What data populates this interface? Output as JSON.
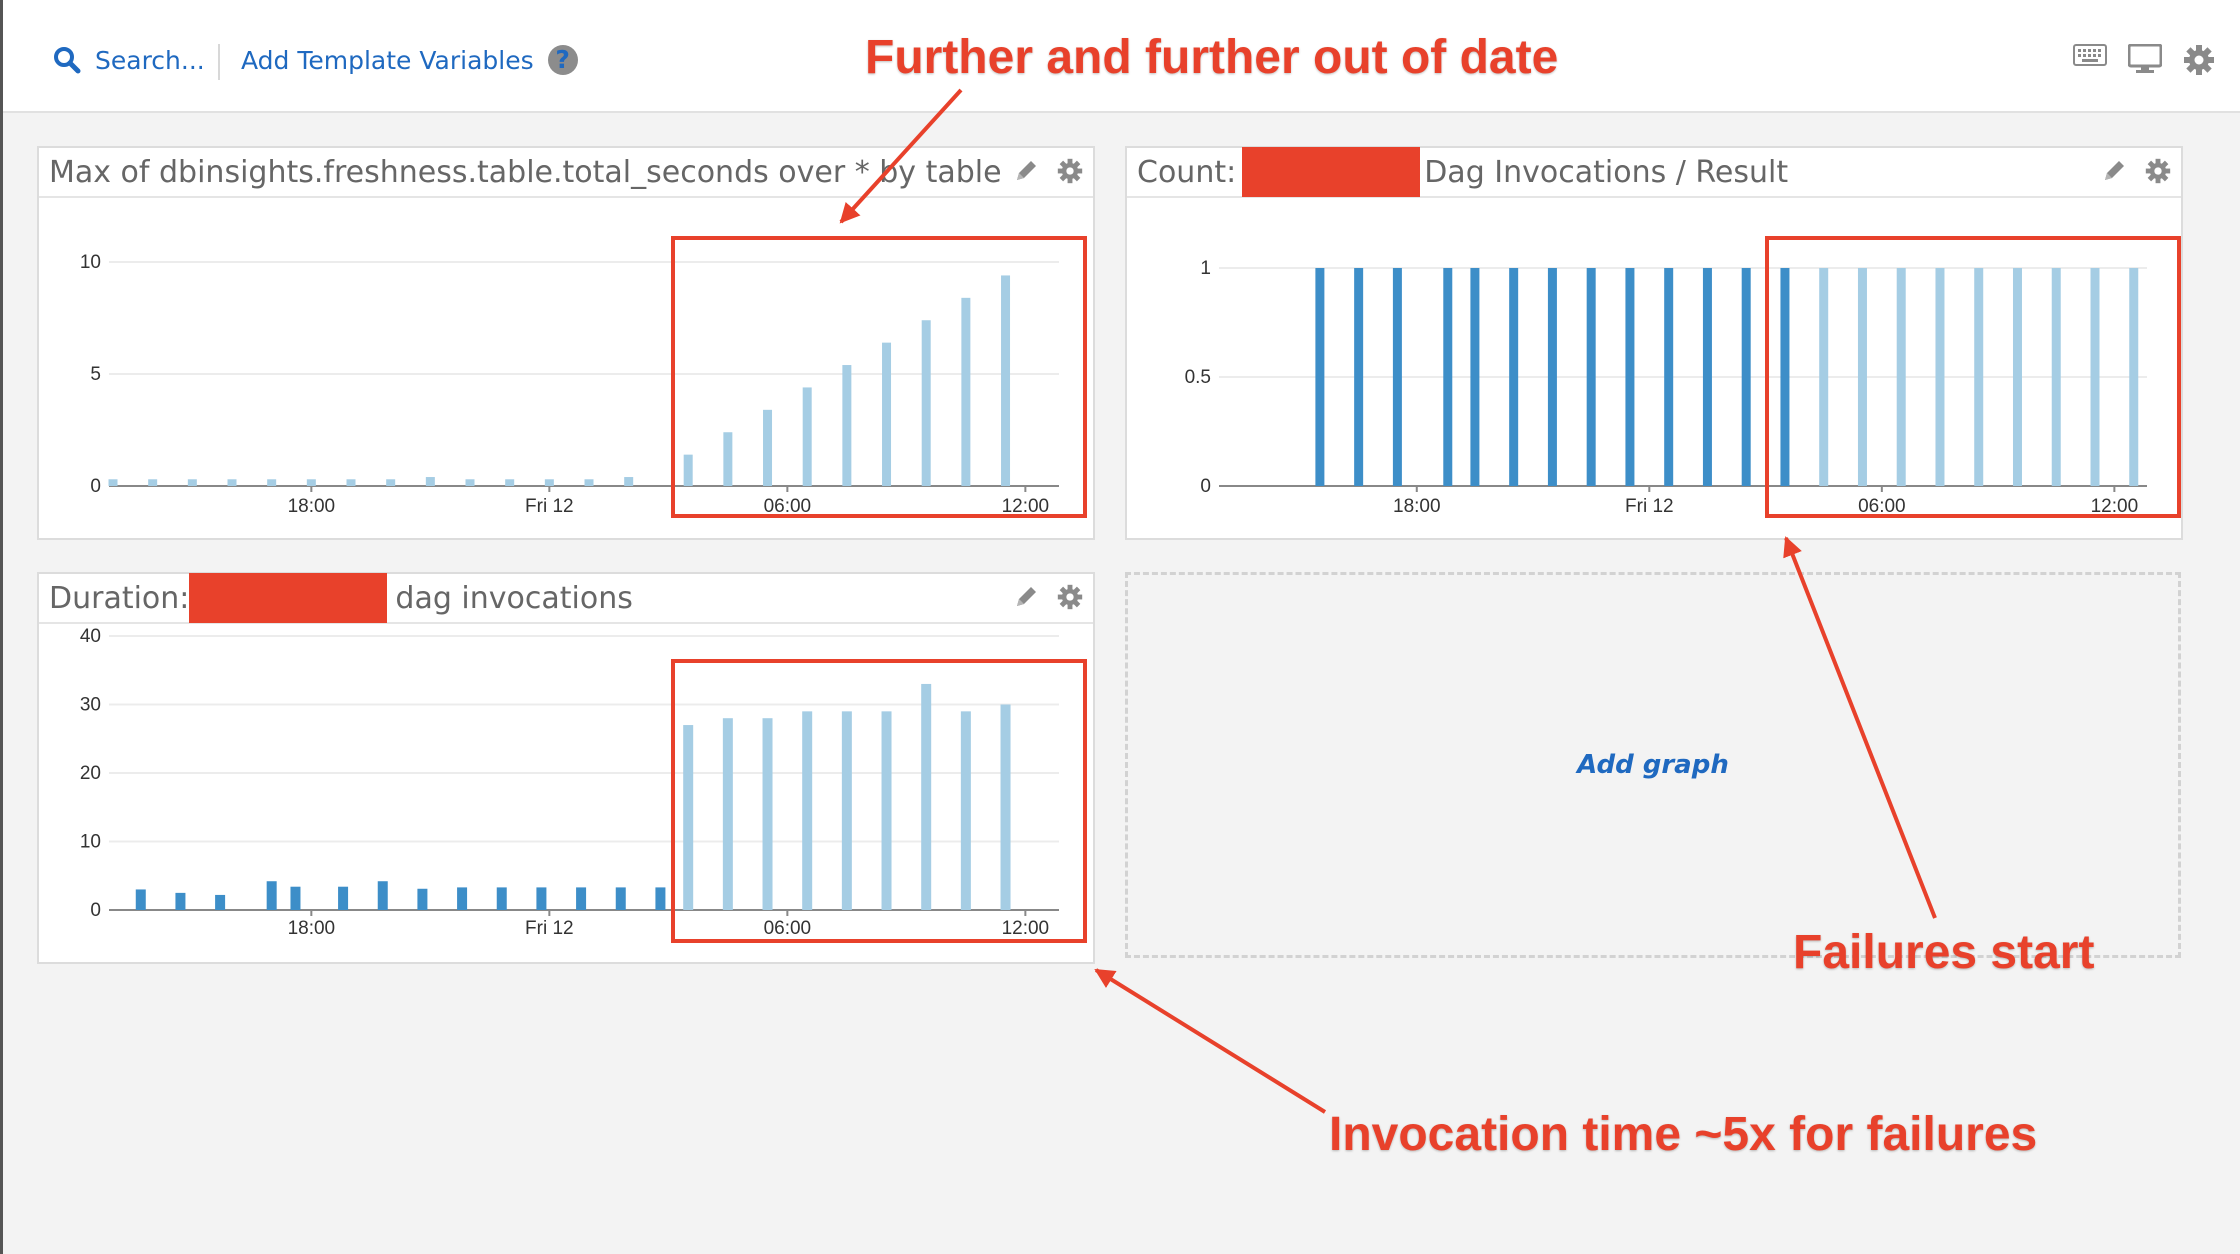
{
  "toolbar": {
    "search_label": "Search...",
    "template_vars_label": "Add Template Variables",
    "help_symbol": "?",
    "icons": [
      "keyboard-icon",
      "monitor-icon",
      "gear-icon"
    ]
  },
  "colors": {
    "ok": "#3d8ec8",
    "fail": "#a5cde4",
    "accent": "#1f69c0",
    "annotation": "#e8412b",
    "redaction": "#e8412b"
  },
  "widgets": {
    "freshness": {
      "title": "Max of dbinsights.freshness.table.total_seconds over * by table"
    },
    "count": {
      "title_prefix": "Count:",
      "title_suffix": "Dag Invocations / Result"
    },
    "duration": {
      "title_prefix": "Duration:",
      "title_suffix": "dag invocations"
    }
  },
  "add_graph_label": "Add graph",
  "annotations": {
    "top": "Further and further out of date",
    "failures": "Failures start",
    "bottom": "Invocation time ~5x for failures"
  },
  "chart_data": [
    {
      "type": "bar",
      "ylim": [
        0,
        10
      ],
      "yticks": [
        0,
        5,
        10
      ],
      "x_ticks": [
        {
          "label": "18:00",
          "x": 5
        },
        {
          "label": "Fri 12",
          "x": 11
        },
        {
          "label": "06:00",
          "x": 17
        },
        {
          "label": "12:00",
          "x": 23
        }
      ],
      "x_range": [
        0,
        24.1
      ],
      "bars": [
        {
          "x": 0,
          "y": 0.3,
          "status": "fail"
        },
        {
          "x": 1,
          "y": 0.3,
          "status": "fail"
        },
        {
          "x": 2,
          "y": 0.3,
          "status": "fail"
        },
        {
          "x": 3,
          "y": 0.3,
          "status": "fail"
        },
        {
          "x": 4,
          "y": 0.3,
          "status": "fail"
        },
        {
          "x": 5,
          "y": 0.3,
          "status": "fail"
        },
        {
          "x": 6,
          "y": 0.3,
          "status": "fail"
        },
        {
          "x": 7,
          "y": 0.3,
          "status": "fail"
        },
        {
          "x": 8,
          "y": 0.4,
          "status": "fail"
        },
        {
          "x": 9,
          "y": 0.3,
          "status": "fail"
        },
        {
          "x": 10,
          "y": 0.3,
          "status": "fail"
        },
        {
          "x": 11,
          "y": 0.3,
          "status": "fail"
        },
        {
          "x": 12,
          "y": 0.3,
          "status": "fail"
        },
        {
          "x": 13,
          "y": 0.4,
          "status": "fail"
        },
        {
          "x": 14.5,
          "y": 1.4,
          "status": "fail"
        },
        {
          "x": 15.5,
          "y": 2.4,
          "status": "fail"
        },
        {
          "x": 16.5,
          "y": 3.4,
          "status": "fail"
        },
        {
          "x": 17.5,
          "y": 4.4,
          "status": "fail"
        },
        {
          "x": 18.5,
          "y": 5.4,
          "status": "fail"
        },
        {
          "x": 19.5,
          "y": 6.4,
          "status": "fail"
        },
        {
          "x": 20.5,
          "y": 7.4,
          "status": "fail"
        },
        {
          "x": 21.5,
          "y": 8.4,
          "status": "fail"
        },
        {
          "x": 22.5,
          "y": 9.4,
          "status": "fail"
        }
      ]
    },
    {
      "type": "bar",
      "ylim": [
        0,
        1
      ],
      "yticks": [
        0,
        0.5,
        1
      ],
      "x_ticks": [
        {
          "label": "18:00",
          "x": 5
        },
        {
          "label": "Fri 12",
          "x": 11
        },
        {
          "label": "06:00",
          "x": 17
        },
        {
          "label": "12:00",
          "x": 23
        }
      ],
      "x_range": [
        0,
        24.1
      ],
      "bars": [
        {
          "x": 2.5,
          "y": 1,
          "status": "ok"
        },
        {
          "x": 3.5,
          "y": 1,
          "status": "ok"
        },
        {
          "x": 4.5,
          "y": 1,
          "status": "ok"
        },
        {
          "x": 5.8,
          "y": 1,
          "status": "ok"
        },
        {
          "x": 6.5,
          "y": 1,
          "status": "ok"
        },
        {
          "x": 7.5,
          "y": 1,
          "status": "ok"
        },
        {
          "x": 8.5,
          "y": 1,
          "status": "ok"
        },
        {
          "x": 9.5,
          "y": 1,
          "status": "ok"
        },
        {
          "x": 10.5,
          "y": 1,
          "status": "ok"
        },
        {
          "x": 11.5,
          "y": 1,
          "status": "ok"
        },
        {
          "x": 12.5,
          "y": 1,
          "status": "ok"
        },
        {
          "x": 13.5,
          "y": 1,
          "status": "ok"
        },
        {
          "x": 14.5,
          "y": 1,
          "status": "ok"
        },
        {
          "x": 15.5,
          "y": 1,
          "status": "fail"
        },
        {
          "x": 16.5,
          "y": 1,
          "status": "fail"
        },
        {
          "x": 17.5,
          "y": 1,
          "status": "fail"
        },
        {
          "x": 18.5,
          "y": 1,
          "status": "fail"
        },
        {
          "x": 19.5,
          "y": 1,
          "status": "fail"
        },
        {
          "x": 20.5,
          "y": 1,
          "status": "fail"
        },
        {
          "x": 21.5,
          "y": 1,
          "status": "fail"
        },
        {
          "x": 22.5,
          "y": 1,
          "status": "fail"
        },
        {
          "x": 23.5,
          "y": 1,
          "status": "fail"
        }
      ]
    },
    {
      "type": "bar",
      "ylim": [
        0,
        40
      ],
      "yticks": [
        0,
        10,
        20,
        30,
        40
      ],
      "x_ticks": [
        {
          "label": "18:00",
          "x": 5
        },
        {
          "label": "Fri 12",
          "x": 11
        },
        {
          "label": "06:00",
          "x": 17
        },
        {
          "label": "12:00",
          "x": 23
        }
      ],
      "x_range": [
        0,
        24.1
      ],
      "bars": [
        {
          "x": 0.7,
          "y": 3,
          "status": "ok"
        },
        {
          "x": 1.7,
          "y": 2.5,
          "status": "ok"
        },
        {
          "x": 2.7,
          "y": 2.2,
          "status": "ok"
        },
        {
          "x": 4.0,
          "y": 4.2,
          "status": "ok"
        },
        {
          "x": 4.6,
          "y": 3.4,
          "status": "ok"
        },
        {
          "x": 5.8,
          "y": 3.4,
          "status": "ok"
        },
        {
          "x": 6.8,
          "y": 4.2,
          "status": "ok"
        },
        {
          "x": 7.8,
          "y": 3.1,
          "status": "ok"
        },
        {
          "x": 8.8,
          "y": 3.3,
          "status": "ok"
        },
        {
          "x": 9.8,
          "y": 3.3,
          "status": "ok"
        },
        {
          "x": 10.8,
          "y": 3.3,
          "status": "ok"
        },
        {
          "x": 11.8,
          "y": 3.3,
          "status": "ok"
        },
        {
          "x": 12.8,
          "y": 3.3,
          "status": "ok"
        },
        {
          "x": 13.8,
          "y": 3.3,
          "status": "ok"
        },
        {
          "x": 14.5,
          "y": 27,
          "status": "fail"
        },
        {
          "x": 15.5,
          "y": 28,
          "status": "fail"
        },
        {
          "x": 16.5,
          "y": 28,
          "status": "fail"
        },
        {
          "x": 17.5,
          "y": 29,
          "status": "fail"
        },
        {
          "x": 18.5,
          "y": 29,
          "status": "fail"
        },
        {
          "x": 19.5,
          "y": 29,
          "status": "fail"
        },
        {
          "x": 20.5,
          "y": 33,
          "status": "fail"
        },
        {
          "x": 21.5,
          "y": 29,
          "status": "fail"
        },
        {
          "x": 22.5,
          "y": 30,
          "status": "fail"
        }
      ]
    }
  ]
}
